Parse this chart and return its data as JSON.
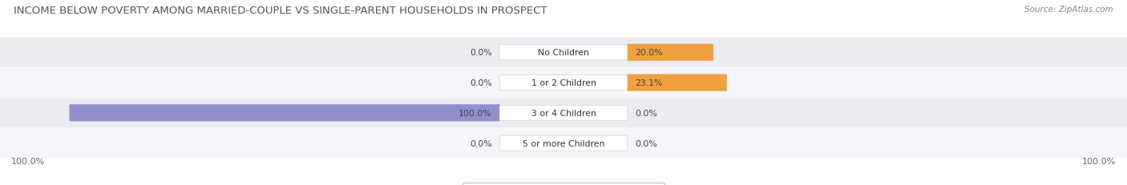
{
  "title": "INCOME BELOW POVERTY AMONG MARRIED-COUPLE VS SINGLE-PARENT HOUSEHOLDS IN PROSPECT",
  "source": "Source: ZipAtlas.com",
  "categories": [
    "No Children",
    "1 or 2 Children",
    "3 or 4 Children",
    "5 or more Children"
  ],
  "married_couples": [
    0.0,
    0.0,
    100.0,
    0.0
  ],
  "single_parents": [
    20.0,
    23.1,
    0.0,
    0.0
  ],
  "married_color": "#9090cc",
  "single_color": "#f0a040",
  "married_color_light": "#aaaadd",
  "single_color_light": "#f5c07a",
  "row_bg_even": "#ebebf2",
  "row_bg_odd": "#f5f5fa",
  "background_color": "#ffffff",
  "title_fontsize": 9.5,
  "label_fontsize": 7.8,
  "legend_fontsize": 8,
  "axis_label_fontsize": 8
}
